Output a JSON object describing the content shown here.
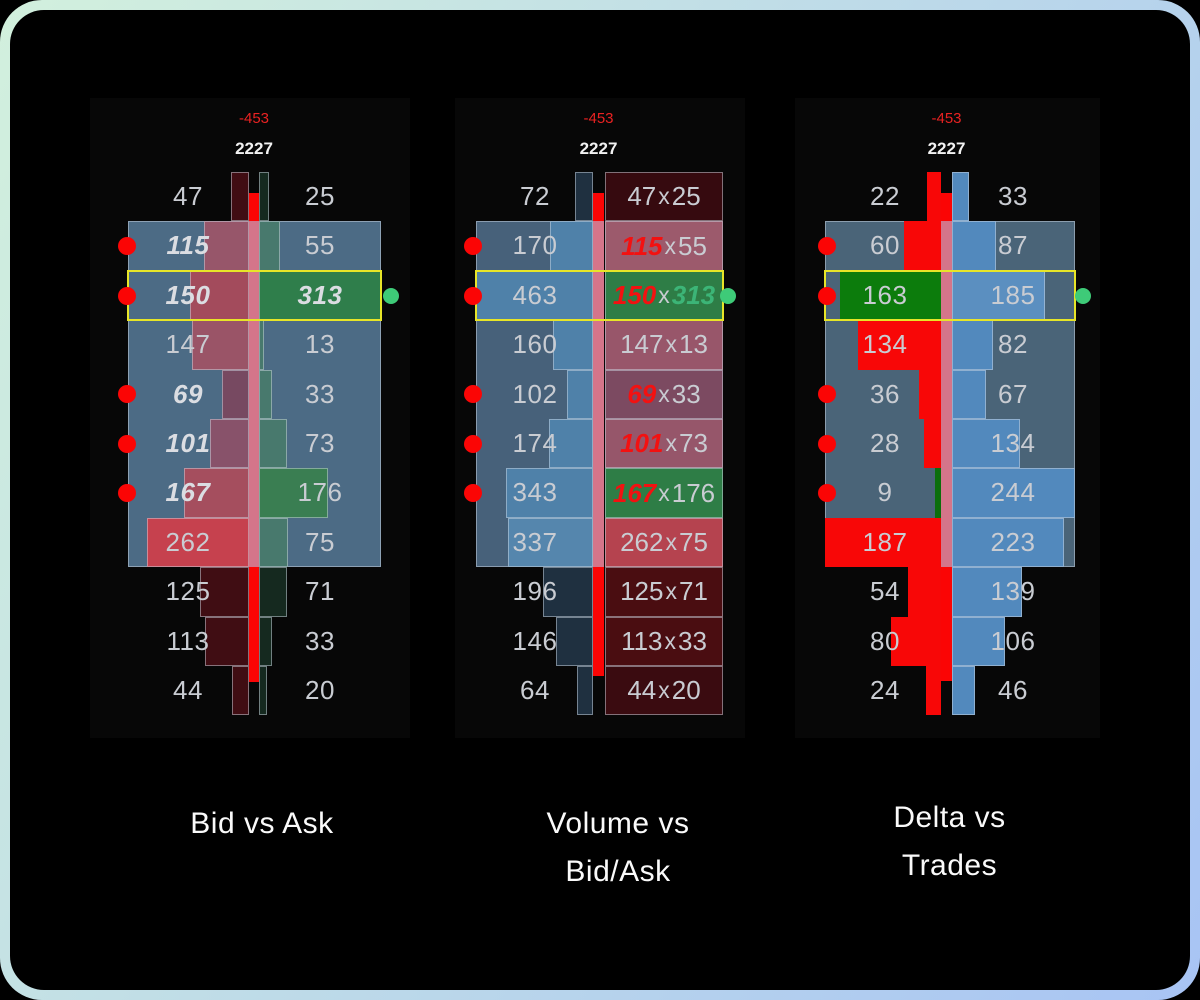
{
  "colors": {
    "frame_gradient_start": "#d2f0dd",
    "frame_gradient_end": "#a8c4f4",
    "page_bg": "#000000",
    "panel_bg": "#070707",
    "value_area_blue_1": "#4c6b85",
    "value_area_blue_2": "#47617a",
    "value_area_blue_3": "#4a6478",
    "center_line_pink": "#d4758a",
    "center_line_red": "#fb0505",
    "signal_dot_red": "#fb0505",
    "signal_dot_green": "#3ecb78",
    "highlight_yellow": "#e7e528",
    "negative_red_label": "#e92222",
    "total_white_label": "#f2f2f2",
    "number_gray": "#c9ccd2",
    "number_emphasis_gray": "#dbdde2",
    "emphasis_red": "#f31111",
    "emphasis_green": "#3cb577",
    "bar_border": "rgba(205,216,228,0.5)"
  },
  "chart_data": [
    {
      "type": "footprint-profile",
      "id": "bid-vs-ask",
      "title": "Bid vs Ask",
      "title_lines": [
        "Bid vs Ask"
      ],
      "cumulative_delta_label": "-453",
      "total_volume_label": "2227",
      "cumulative_delta": -453,
      "total_volume": 2227,
      "legend": "left column = bid, right column = ask",
      "value_area_rows": [
        2,
        8
      ],
      "highlight_row": 3,
      "rows": [
        {
          "bid": 47,
          "ask": 25,
          "lb": "#400d13",
          "rb": "#15291f",
          "in_area": false,
          "dot": false,
          "highlight": false,
          "bid_emph": false,
          "ask_emph": false
        },
        {
          "bid": 115,
          "ask": 55,
          "lb": "#97566a",
          "rb": "#48796d",
          "in_area": true,
          "dot": true,
          "highlight": false,
          "bid_emph": true,
          "ask_emph": false
        },
        {
          "bid": 150,
          "ask": 313,
          "lb": "#a34b5c",
          "rb": "#2f7e4b",
          "in_area": true,
          "dot": true,
          "green_dot": true,
          "highlight": true,
          "bid_emph": true,
          "ask_emph": true
        },
        {
          "bid": 147,
          "ask": 13,
          "lb": "#9a5467",
          "rb": "#48796d",
          "in_area": true,
          "dot": false,
          "highlight": false,
          "bid_emph": false,
          "ask_emph": false
        },
        {
          "bid": 69,
          "ask": 33,
          "lb": "#774961",
          "rb": "#48796d",
          "in_area": true,
          "dot": true,
          "highlight": false,
          "bid_emph": true,
          "ask_emph": false
        },
        {
          "bid": 101,
          "ask": 73,
          "lb": "#88526a",
          "rb": "#48796d",
          "in_area": true,
          "dot": true,
          "highlight": false,
          "bid_emph": true,
          "ask_emph": false
        },
        {
          "bid": 167,
          "ask": 176,
          "lb": "#a54e5e",
          "rb": "#3a7e52",
          "in_area": true,
          "dot": true,
          "highlight": false,
          "bid_emph": true,
          "ask_emph": false
        },
        {
          "bid": 262,
          "ask": 75,
          "lb": "#c6414e",
          "rb": "#48796d",
          "in_area": true,
          "dot": false,
          "highlight": false,
          "bid_emph": false,
          "ask_emph": false
        },
        {
          "bid": 125,
          "ask": 71,
          "lb": "#400d13",
          "rb": "#15291f",
          "in_area": false,
          "dot": false,
          "highlight": false,
          "bid_emph": false,
          "ask_emph": false
        },
        {
          "bid": 113,
          "ask": 33,
          "lb": "#400d13",
          "rb": "#15291f",
          "in_area": false,
          "dot": false,
          "highlight": false,
          "bid_emph": false,
          "ask_emph": false
        },
        {
          "bid": 44,
          "ask": 20,
          "lb": "#400d13",
          "rb": "#15291f",
          "in_area": false,
          "dot": false,
          "highlight": false,
          "bid_emph": false,
          "ask_emph": false
        }
      ]
    },
    {
      "type": "footprint-profile",
      "id": "volume-vs-bidask",
      "title": "Volume vs Bid/Ask",
      "title_lines": [
        "Volume vs",
        "Bid/Ask"
      ],
      "cumulative_delta_label": "-453",
      "total_volume_label": "2227",
      "cumulative_delta": -453,
      "total_volume": 2227,
      "separator": "x",
      "legend": "left column = total volume, right cell = bid x ask",
      "value_area_rows": [
        2,
        8
      ],
      "highlight_row": 3,
      "rows": [
        {
          "volume": 72,
          "bid": 47,
          "ask": 25,
          "lb": "#1f3040",
          "cell": "#360a0f",
          "in_area": false,
          "dot": false,
          "highlight": false,
          "bid_emph": false,
          "ask_emph": false
        },
        {
          "volume": 170,
          "bid": 115,
          "ask": 55,
          "lb": "#4f81a9",
          "cell": "#9c5a6c",
          "in_area": true,
          "dot": true,
          "highlight": false,
          "bid_emph": true,
          "ask_emph": false
        },
        {
          "volume": 463,
          "bid": 150,
          "ask": 313,
          "lb": "#4f81a9",
          "cell": "#2e7d46",
          "in_area": true,
          "dot": true,
          "green_dot": true,
          "highlight": true,
          "bid_emph": true,
          "ask_emph": true
        },
        {
          "volume": 160,
          "bid": 147,
          "ask": 13,
          "lb": "#4f81a9",
          "cell": "#98566a",
          "in_area": true,
          "dot": false,
          "highlight": false,
          "bid_emph": false,
          "ask_emph": false
        },
        {
          "volume": 102,
          "bid": 69,
          "ask": 33,
          "lb": "#4f81a9",
          "cell": "#7c4a61",
          "in_area": true,
          "dot": true,
          "highlight": false,
          "bid_emph": true,
          "ask_emph": false
        },
        {
          "volume": 174,
          "bid": 101,
          "ask": 73,
          "lb": "#4f81a9",
          "cell": "#96566a",
          "in_area": true,
          "dot": true,
          "highlight": false,
          "bid_emph": true,
          "ask_emph": false
        },
        {
          "volume": 343,
          "bid": 167,
          "ask": 176,
          "lb": "#4f81a9",
          "cell": "#2e7d46",
          "in_area": true,
          "dot": true,
          "highlight": false,
          "bid_emph": true,
          "ask_emph": false
        },
        {
          "volume": 337,
          "bid": 262,
          "ask": 75,
          "lb": "#5586ad",
          "cell": "#b5434f",
          "in_area": true,
          "dot": false,
          "highlight": false,
          "bid_emph": false,
          "ask_emph": false
        },
        {
          "volume": 196,
          "bid": 125,
          "ask": 71,
          "lb": "#1f3040",
          "cell": "#4a0d11",
          "in_area": false,
          "dot": false,
          "highlight": false,
          "bid_emph": false,
          "ask_emph": false
        },
        {
          "volume": 146,
          "bid": 113,
          "ask": 33,
          "lb": "#1f3040",
          "cell": "#4a0d11",
          "in_area": false,
          "dot": false,
          "highlight": false,
          "bid_emph": false,
          "ask_emph": false
        },
        {
          "volume": 64,
          "bid": 44,
          "ask": 20,
          "lb": "#1f3040",
          "cell": "#3a0b10",
          "in_area": false,
          "dot": false,
          "highlight": false,
          "bid_emph": false,
          "ask_emph": false
        }
      ]
    },
    {
      "type": "footprint-profile",
      "id": "delta-vs-trades",
      "title": "Delta vs Trades",
      "title_lines": [
        "Delta vs",
        "Trades"
      ],
      "cumulative_delta_label": "-453",
      "total_volume_label": "2227",
      "cumulative_delta": -453,
      "total_volume": 2227,
      "legend": "left column = delta (red negative, green positive), right column = trades",
      "value_area_rows": [
        2,
        8
      ],
      "highlight_row": 3,
      "rows": [
        {
          "delta": 22,
          "trades": 33,
          "positive": false,
          "lb": "#f80707",
          "rb": "#5289bd",
          "in_area": false,
          "dot": false,
          "highlight": false
        },
        {
          "delta": 60,
          "trades": 87,
          "positive": false,
          "lb": "#f80707",
          "rb": "#5289bd",
          "in_area": true,
          "dot": true,
          "highlight": false
        },
        {
          "delta": 163,
          "trades": 185,
          "positive": true,
          "lb": "#0c7c0c",
          "rb": "#5b8fc0",
          "in_area": true,
          "dot": true,
          "green_dot": true,
          "highlight": true
        },
        {
          "delta": 134,
          "trades": 82,
          "positive": false,
          "lb": "#f80707",
          "rb": "#5289bd",
          "in_area": true,
          "dot": false,
          "highlight": false
        },
        {
          "delta": 36,
          "trades": 67,
          "positive": false,
          "lb": "#f80707",
          "rb": "#5289bd",
          "in_area": true,
          "dot": true,
          "highlight": false
        },
        {
          "delta": 28,
          "trades": 134,
          "positive": false,
          "lb": "#f80707",
          "rb": "#5289bd",
          "in_area": true,
          "dot": true,
          "highlight": false
        },
        {
          "delta": 9,
          "trades": 244,
          "positive": true,
          "lb": "#0c6e0c",
          "rb": "#5289bd",
          "in_area": true,
          "dot": true,
          "highlight": false
        },
        {
          "delta": 187,
          "trades": 223,
          "positive": false,
          "lb": "#f80707",
          "rb": "#5289bd",
          "in_area": true,
          "dot": false,
          "highlight": false
        },
        {
          "delta": 54,
          "trades": 139,
          "positive": false,
          "lb": "#f80707",
          "rb": "#5289bd",
          "in_area": false,
          "dot": false,
          "highlight": false
        },
        {
          "delta": 80,
          "trades": 106,
          "positive": false,
          "lb": "#f80707",
          "rb": "#5289bd",
          "in_area": false,
          "dot": false,
          "highlight": false
        },
        {
          "delta": 24,
          "trades": 46,
          "positive": false,
          "lb": "#f80707",
          "rb": "#5289bd",
          "in_area": false,
          "dot": false,
          "highlight": false
        }
      ]
    }
  ]
}
